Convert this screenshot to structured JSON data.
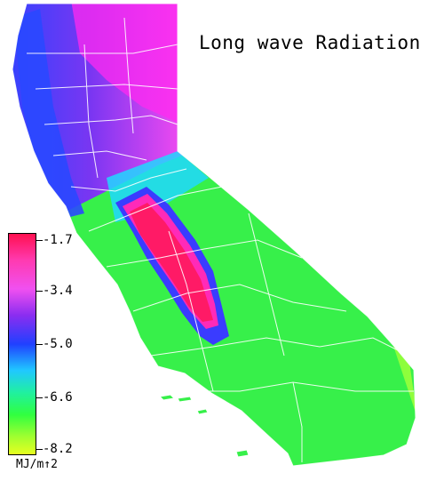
{
  "title": "Long wave Radiation",
  "legend": {
    "ticks": [
      "-1.7",
      "-3.4",
      "-5.0",
      "-6.6",
      "-8.2"
    ],
    "unit": "MJ/m↑2"
  },
  "colors": {
    "max": "#ff1050",
    "high": "#f050f0",
    "mid": "#2040ff",
    "low": "#30ff40",
    "min": "#e6ff20",
    "county_lines": "#ffffff"
  }
}
